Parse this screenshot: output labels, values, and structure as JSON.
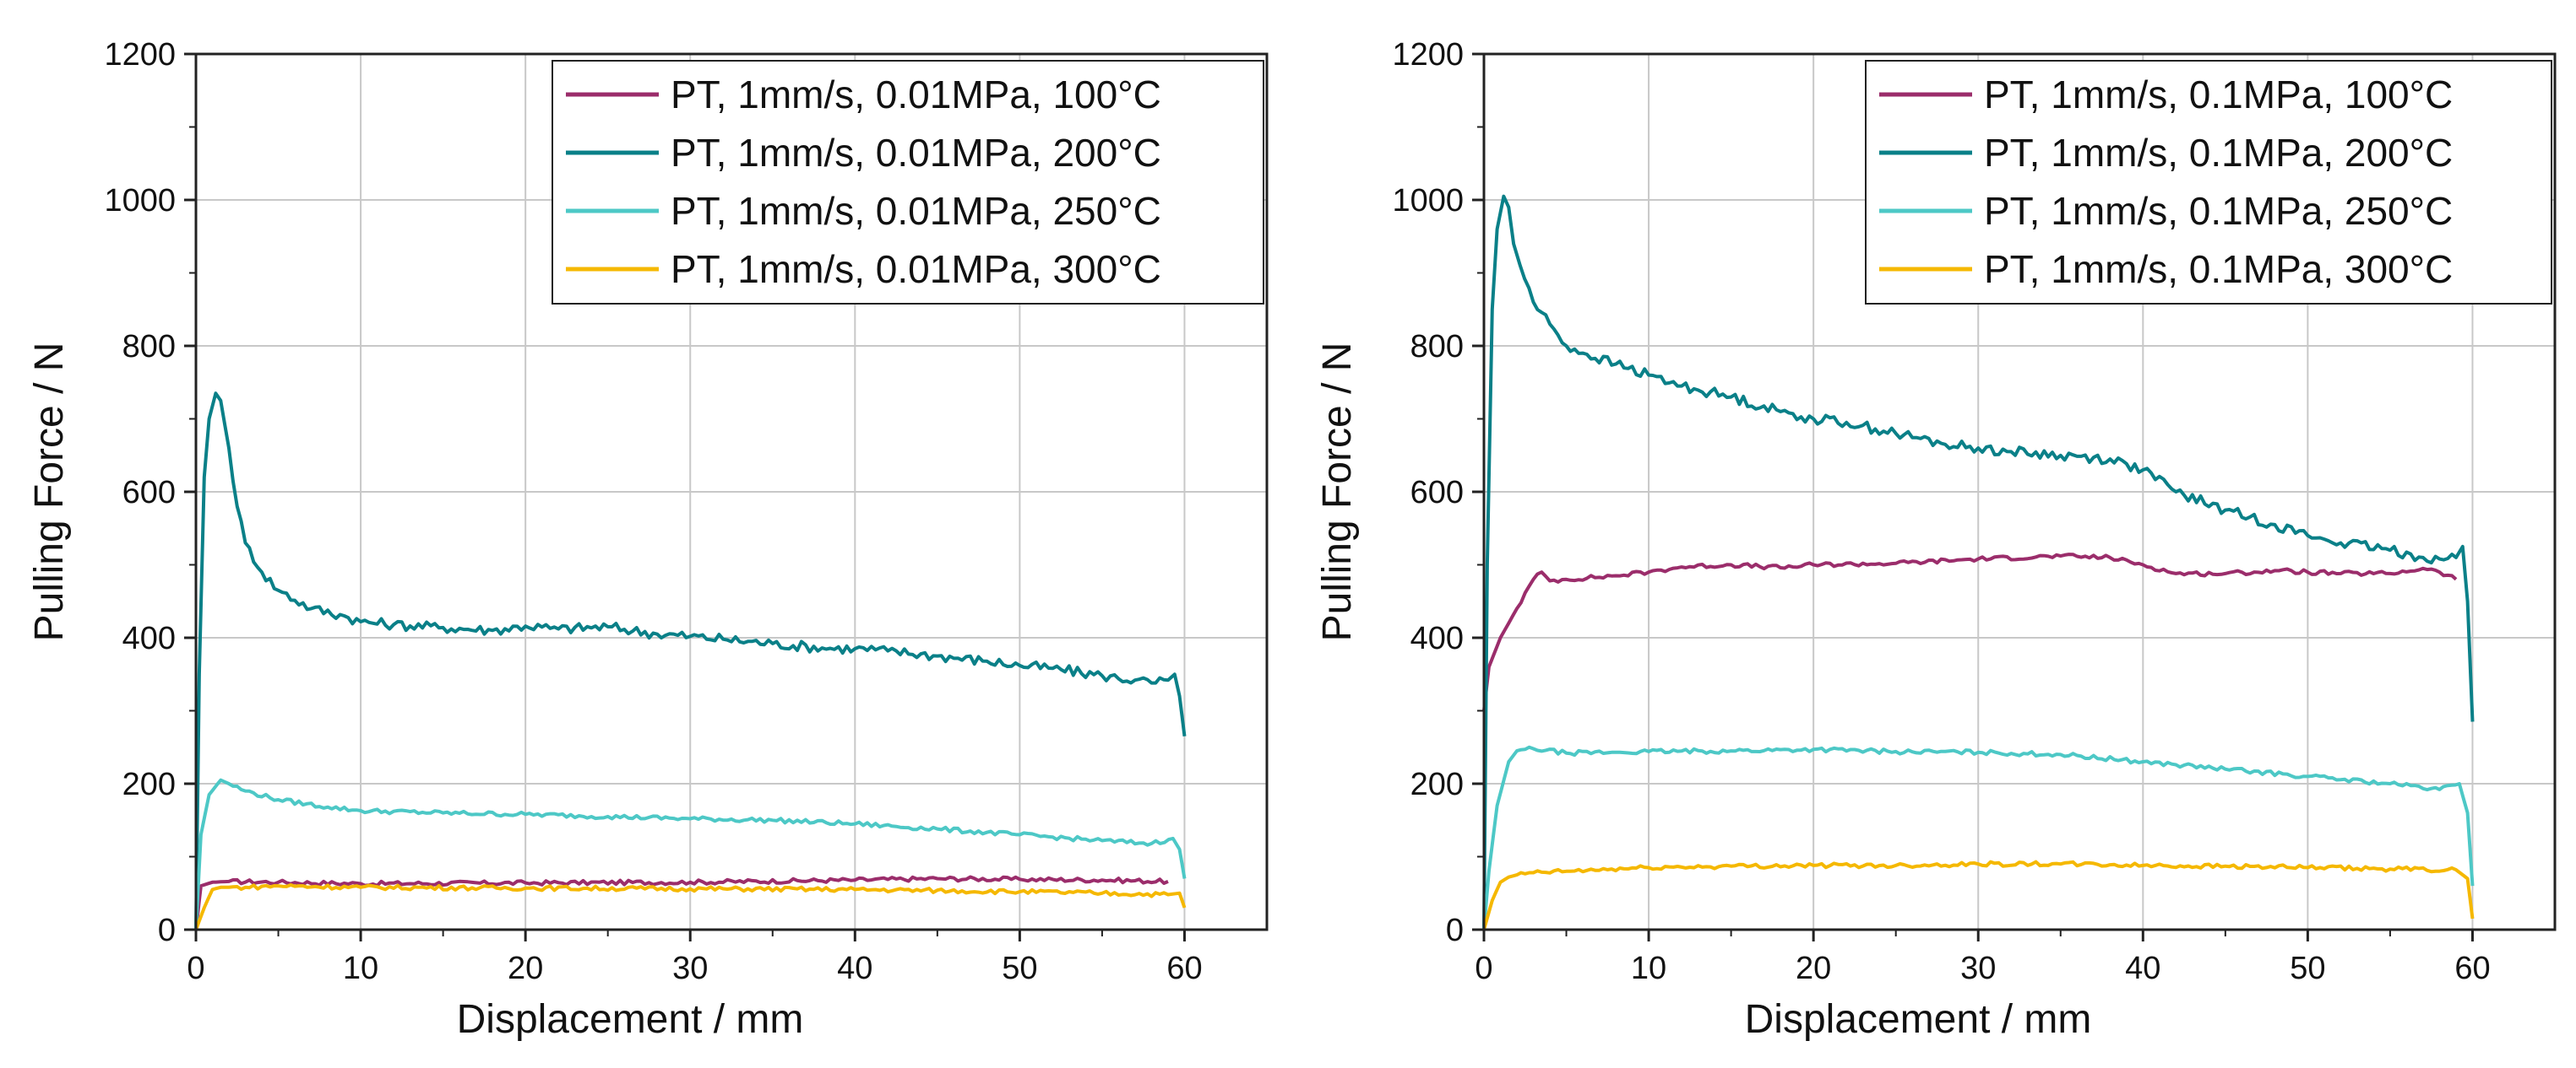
{
  "figure": {
    "panel_count": 2
  },
  "chart_data": [
    {
      "type": "line",
      "title": "",
      "xlabel": "Displacement / mm",
      "ylabel": "Pulling Force / N",
      "xlim": [
        0,
        65
      ],
      "ylim": [
        0,
        1200
      ],
      "xticks": [
        0,
        10,
        20,
        30,
        40,
        50,
        60
      ],
      "yticks": [
        0,
        200,
        400,
        600,
        800,
        1000,
        1200
      ],
      "grid": true,
      "legend_position": "top-right",
      "series": [
        {
          "name": "PT, 1mm/s, 0.01MPa, 100°C",
          "color": "#9b2d6b",
          "x": [
            0,
            0.3,
            1,
            2,
            5,
            10,
            20,
            30,
            40,
            45,
            50,
            55,
            59
          ],
          "y": [
            0,
            60,
            65,
            66,
            65,
            63,
            64,
            65,
            68,
            70,
            69,
            68,
            66
          ]
        },
        {
          "name": "PT, 1mm/s, 0.01MPa, 200°C",
          "color": "#0a8088",
          "x": [
            0,
            0.2,
            0.5,
            0.8,
            1.2,
            1.5,
            2,
            2.5,
            3,
            4,
            5,
            7,
            9,
            10,
            12,
            15,
            18,
            20,
            22,
            25,
            28,
            30,
            32,
            35,
            38,
            40,
            42,
            45,
            48,
            50,
            52,
            55,
            57,
            58,
            59,
            59.4,
            59.7,
            60
          ],
          "y": [
            0,
            350,
            620,
            700,
            735,
            725,
            660,
            580,
            530,
            490,
            465,
            440,
            430,
            422,
            418,
            414,
            410,
            416,
            412,
            415,
            405,
            402,
            398,
            392,
            386,
            385,
            382,
            375,
            368,
            362,
            358,
            348,
            342,
            338,
            342,
            350,
            320,
            265
          ]
        },
        {
          "name": "PT, 1mm/s, 0.01MPa, 250°C",
          "color": "#4dc8c6",
          "x": [
            0,
            0.3,
            0.8,
            1.5,
            2,
            3,
            5,
            8,
            10,
            15,
            20,
            25,
            30,
            35,
            40,
            45,
            50,
            55,
            58,
            59.3,
            59.7,
            60
          ],
          "y": [
            0,
            130,
            185,
            205,
            200,
            190,
            178,
            168,
            163,
            160,
            158,
            155,
            152,
            150,
            145,
            138,
            130,
            122,
            118,
            125,
            110,
            70
          ]
        },
        {
          "name": "PT, 1mm/s, 0.01MPa, 300°C",
          "color": "#f5b800",
          "x": [
            0,
            0.5,
            1,
            1.5,
            3,
            5,
            10,
            20,
            30,
            40,
            50,
            55,
            59,
            59.7,
            60
          ],
          "y": [
            0,
            30,
            55,
            58,
            58,
            60,
            58,
            57,
            56,
            55,
            52,
            50,
            48,
            50,
            30
          ]
        }
      ]
    },
    {
      "type": "line",
      "title": "",
      "xlabel": "Displacement / mm",
      "ylabel": "Pulling Force / N",
      "xlim": [
        0,
        65
      ],
      "ylim": [
        0,
        1200
      ],
      "xticks": [
        0,
        10,
        20,
        30,
        40,
        50,
        60
      ],
      "yticks": [
        0,
        200,
        400,
        600,
        800,
        1000,
        1200
      ],
      "grid": true,
      "legend_position": "top-right",
      "series": [
        {
          "name": "PT, 1mm/s, 0.1MPa, 100°C",
          "color": "#9b2d6b",
          "x": [
            0,
            0.3,
            1,
            2,
            3,
            3.5,
            4,
            5,
            8,
            10,
            12,
            15,
            18,
            20,
            25,
            30,
            35,
            38,
            40,
            42,
            45,
            48,
            50,
            52,
            55,
            57,
            58,
            59
          ],
          "y": [
            300,
            360,
            400,
            440,
            480,
            490,
            478,
            480,
            485,
            490,
            497,
            500,
            496,
            500,
            502,
            508,
            512,
            510,
            500,
            488,
            488,
            492,
            490,
            488,
            488,
            495,
            490,
            480
          ]
        },
        {
          "name": "PT, 1mm/s, 0.1MPa, 200°C",
          "color": "#0a8088",
          "x": [
            0,
            0.2,
            0.5,
            0.8,
            1.2,
            1.5,
            1.8,
            2.2,
            3,
            4,
            5,
            6,
            8,
            10,
            12,
            15,
            18,
            20,
            22,
            25,
            28,
            30,
            32,
            35,
            38,
            40,
            42,
            45,
            48,
            50,
            52,
            55,
            57,
            58,
            59,
            59.4,
            59.7,
            60
          ],
          "y": [
            0,
            500,
            850,
            960,
            1005,
            990,
            940,
            910,
            860,
            830,
            800,
            790,
            775,
            760,
            745,
            730,
            710,
            700,
            695,
            680,
            665,
            660,
            655,
            650,
            645,
            630,
            600,
            575,
            555,
            540,
            530,
            520,
            510,
            508,
            510,
            525,
            450,
            285
          ]
        },
        {
          "name": "PT, 1mm/s, 0.1MPa, 250°C",
          "color": "#4dc8c6",
          "x": [
            0,
            0.3,
            0.8,
            1.5,
            2,
            3,
            5,
            8,
            10,
            15,
            20,
            25,
            30,
            35,
            40,
            45,
            50,
            55,
            58,
            59.2,
            59.7,
            60
          ],
          "y": [
            0,
            80,
            170,
            230,
            245,
            248,
            242,
            243,
            244,
            245,
            247,
            244,
            243,
            240,
            230,
            220,
            210,
            200,
            192,
            200,
            160,
            60
          ]
        },
        {
          "name": "PT, 1mm/s, 0.1MPa, 300°C",
          "color": "#f5b800",
          "x": [
            0,
            0.5,
            1,
            1.5,
            2,
            3,
            5,
            10,
            15,
            20,
            25,
            30,
            35,
            40,
            45,
            50,
            55,
            59,
            59.7,
            60
          ],
          "y": [
            0,
            40,
            65,
            72,
            75,
            78,
            80,
            85,
            87,
            88,
            88,
            90,
            90,
            88,
            87,
            85,
            83,
            82,
            70,
            15
          ]
        }
      ]
    }
  ]
}
